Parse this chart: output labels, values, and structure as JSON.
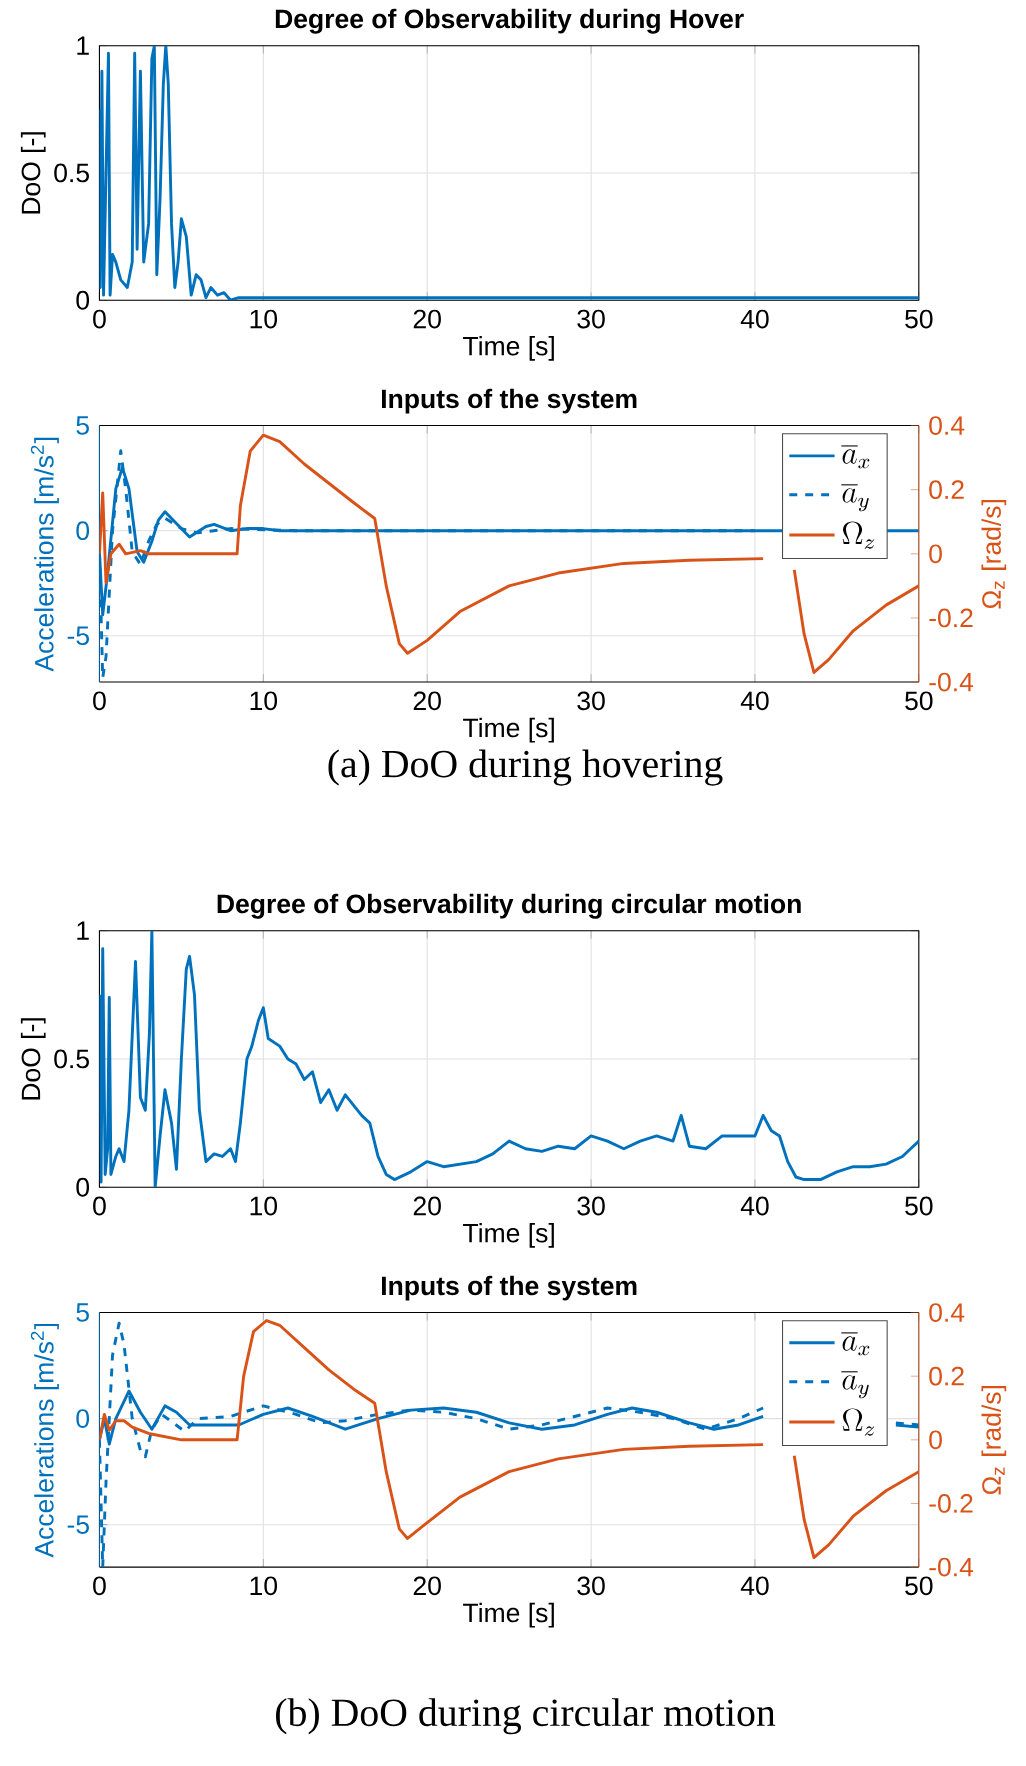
{
  "chart_data": [
    {
      "type": "line",
      "title": "Degree of Observability during Hover",
      "xlabel": "Time [s]",
      "ylabel": "DoO [-]",
      "xlim": [
        0,
        50
      ],
      "ylim": [
        0,
        1
      ],
      "xticks": [
        0,
        10,
        20,
        30,
        40,
        50
      ],
      "yticks": [
        0,
        0.5,
        1
      ],
      "grid": true,
      "series": [
        {
          "color": "#0072bd",
          "x": [
            0,
            0.05,
            0.15,
            0.25,
            0.4,
            0.55,
            0.65,
            0.8,
            1.0,
            1.3,
            1.7,
            2.0,
            2.15,
            2.3,
            2.5,
            2.7,
            3.0,
            3.2,
            3.35,
            3.5,
            3.7,
            3.9,
            4.05,
            4.2,
            4.4,
            4.6,
            4.8,
            5.0,
            5.3,
            5.6,
            5.9,
            6.2,
            6.5,
            6.8,
            7.2,
            7.6,
            8.0,
            8.5,
            9,
            10,
            15,
            20,
            25,
            30,
            35,
            40,
            45,
            50
          ],
          "values": [
            0.75,
            0.05,
            0.9,
            0.02,
            0.5,
            0.97,
            0.02,
            0.18,
            0.15,
            0.08,
            0.05,
            0.15,
            0.97,
            0.2,
            0.9,
            0.15,
            0.3,
            0.95,
            1.0,
            0.1,
            0.4,
            0.85,
            1.0,
            0.85,
            0.3,
            0.05,
            0.15,
            0.32,
            0.25,
            0.02,
            0.1,
            0.08,
            0.01,
            0.05,
            0.02,
            0.03,
            0.0,
            0.01,
            0.01,
            0.01,
            0.01,
            0.01,
            0.01,
            0.01,
            0.01,
            0.01,
            0.01,
            0.01
          ]
        }
      ]
    },
    {
      "type": "line",
      "title": "Inputs of the system",
      "xlabel": "Time [s]",
      "ylabel": "Accelerations [m/s$^{2}$]",
      "y2label": "Ω$_{z}$ [rad/s]",
      "xlim": [
        0,
        50
      ],
      "ylim": [
        -7.2,
        5
      ],
      "y2lim": [
        -0.4,
        0.4
      ],
      "xticks": [
        0,
        10,
        20,
        30,
        40,
        50
      ],
      "yticks": [
        -5,
        0,
        5
      ],
      "y2ticks": [
        -0.4,
        -0.2,
        0,
        0.2,
        0.4
      ],
      "grid": true,
      "legend": "top right",
      "annotations": [
        "(a) DoO during hovering"
      ],
      "series": [
        {
          "name": "\\overline{a}_x",
          "color": "#0072bd",
          "line_style": "solid",
          "x": [
            0,
            0.2,
            0.5,
            1.0,
            1.4,
            1.8,
            2.3,
            2.7,
            3.2,
            3.6,
            4.0,
            4.5,
            5.5,
            6.5,
            7.0,
            8,
            9,
            10,
            11,
            40,
            50
          ],
          "values": [
            -1,
            -4,
            -2,
            2,
            3,
            2,
            -1,
            -1.5,
            -0.5,
            0.5,
            0.9,
            0.5,
            -0.3,
            0.2,
            0.3,
            0.0,
            0.1,
            0.1,
            0.0,
            0.0,
            0.0
          ]
        },
        {
          "name": "\\overline{a}_y",
          "color": "#0072bd",
          "line_style": "dashed",
          "x": [
            0,
            0.2,
            0.4,
            0.8,
            1.3,
            1.6,
            2.0,
            2.5,
            3.0,
            3.5,
            4.0,
            5,
            6,
            8,
            12,
            40
          ],
          "values": [
            -1,
            -7,
            -6,
            0,
            3.8,
            2,
            -1,
            -1.6,
            -0.5,
            0.3,
            0.6,
            0.1,
            -0.1,
            0.1,
            0,
            0
          ]
        },
        {
          "name": "\\Omega_z",
          "color": "#d95319",
          "line_style": "solid",
          "axis": "y2",
          "x": [
            0,
            0.2,
            0.4,
            0.7,
            1.2,
            1.6,
            2.5,
            3.0,
            8.4,
            8.6,
            9.2,
            10,
            11,
            12.5,
            14,
            15.5,
            16.8,
            17.5,
            18.3,
            18.8,
            20,
            22,
            25,
            28,
            32,
            36,
            40.5,
            41.5,
            42.4,
            43,
            43.6,
            44.5,
            46,
            48,
            50
          ],
          "values": [
            0,
            0.19,
            -0.09,
            0.0,
            0.03,
            0.0,
            0.01,
            0.0,
            0.0,
            0.15,
            0.32,
            0.37,
            0.35,
            0.28,
            0.22,
            0.16,
            0.11,
            -0.1,
            -0.28,
            -0.31,
            -0.27,
            -0.18,
            -0.1,
            -0.06,
            -0.03,
            -0.02,
            -0.015,
            null,
            -0.05,
            -0.25,
            -0.37,
            -0.33,
            -0.24,
            -0.16,
            -0.1
          ]
        }
      ]
    },
    {
      "type": "line",
      "title": "Degree of Observability during circular motion",
      "xlabel": "Time [s]",
      "ylabel": "DoO [-]",
      "xlim": [
        0,
        50
      ],
      "ylim": [
        0,
        1
      ],
      "xticks": [
        0,
        10,
        20,
        30,
        40,
        50
      ],
      "yticks": [
        0,
        0.5,
        1
      ],
      "grid": true,
      "series": [
        {
          "color": "#0072bd",
          "x": [
            0,
            0.1,
            0.2,
            0.35,
            0.5,
            0.6,
            0.7,
            1.0,
            1.2,
            1.5,
            1.8,
            2.2,
            2.5,
            2.8,
            3.05,
            3.2,
            3.4,
            3.7,
            4.0,
            4.4,
            4.7,
            5.0,
            5.3,
            5.5,
            5.8,
            6.1,
            6.5,
            7,
            7.5,
            8,
            8.3,
            8.6,
            9.0,
            9.3,
            9.7,
            10,
            10.3,
            11,
            11.5,
            12,
            12.5,
            13,
            13.5,
            14,
            14.5,
            15,
            15.5,
            16,
            16.5,
            17,
            17.5,
            18,
            19,
            20,
            21,
            22,
            23,
            24,
            25,
            26,
            27,
            28,
            29,
            30,
            31,
            32,
            33,
            34,
            35,
            35.5,
            36,
            37,
            38,
            39,
            40,
            40.5,
            41,
            41.5,
            42,
            42.5,
            43,
            44,
            45,
            46,
            47,
            48,
            49,
            49.5,
            50
          ],
          "values": [
            0.75,
            0.02,
            0.93,
            0.05,
            0.15,
            0.74,
            0.05,
            0.12,
            0.15,
            0.1,
            0.3,
            0.88,
            0.35,
            0.3,
            0.6,
            1.0,
            0.0,
            0.2,
            0.38,
            0.25,
            0.07,
            0.5,
            0.85,
            0.9,
            0.75,
            0.3,
            0.1,
            0.13,
            0.12,
            0.15,
            0.1,
            0.25,
            0.5,
            0.55,
            0.65,
            0.7,
            0.58,
            0.55,
            0.5,
            0.48,
            0.42,
            0.45,
            0.33,
            0.38,
            0.3,
            0.36,
            0.32,
            0.28,
            0.25,
            0.12,
            0.05,
            0.03,
            0.06,
            0.1,
            0.08,
            0.09,
            0.1,
            0.13,
            0.18,
            0.15,
            0.14,
            0.16,
            0.15,
            0.2,
            0.18,
            0.15,
            0.18,
            0.2,
            0.18,
            0.28,
            0.16,
            0.15,
            0.2,
            0.2,
            0.2,
            0.28,
            0.22,
            0.2,
            0.1,
            0.04,
            0.03,
            0.03,
            0.06,
            0.08,
            0.08,
            0.09,
            0.12,
            0.15,
            0.18
          ]
        }
      ]
    },
    {
      "type": "line",
      "title": "Inputs of the system",
      "xlabel": "Time [s]",
      "ylabel": "Accelerations [m/s$^{2}$]",
      "y2label": "Ω$_{z}$ [rad/s]",
      "xlim": [
        0,
        50
      ],
      "ylim": [
        -7,
        5
      ],
      "y2lim": [
        -0.4,
        0.4
      ],
      "xticks": [
        0,
        10,
        20,
        30,
        40,
        50
      ],
      "yticks": [
        -5,
        0,
        5
      ],
      "y2ticks": [
        -0.4,
        -0.2,
        0,
        0.2,
        0.4
      ],
      "grid": true,
      "legend": "top right",
      "annotations": [
        "(b) DoO during circular motion"
      ],
      "series": [
        {
          "name": "\\overline{a}_x",
          "color": "#0072bd",
          "line_style": "solid",
          "x": [
            0,
            0.3,
            0.6,
            1.0,
            1.8,
            2.5,
            3.2,
            4,
            4.7,
            5.5,
            6,
            8.5,
            10,
            11.5,
            13,
            15,
            17,
            19,
            21,
            23,
            25,
            27,
            29,
            31,
            32.5,
            34,
            36,
            37.5,
            39,
            40.5,
            41,
            48.6,
            50
          ],
          "values": [
            -1,
            0,
            -1.2,
            0,
            1.3,
            0.3,
            -0.5,
            0.6,
            0.3,
            -0.3,
            -0.3,
            -0.3,
            0.2,
            0.5,
            0.1,
            -0.5,
            0.0,
            0.4,
            0.5,
            0.3,
            -0.2,
            -0.5,
            -0.3,
            0.2,
            0.5,
            0.3,
            -0.2,
            -0.5,
            -0.3,
            0.1,
            null,
            -0.3,
            -0.4
          ]
        },
        {
          "name": "\\overline{a}_y",
          "color": "#0072bd",
          "line_style": "dashed",
          "x": [
            0,
            0.2,
            0.4,
            0.8,
            1.2,
            1.5,
            2.0,
            2.5,
            2.8,
            3.2,
            3.8,
            4.5,
            5.2,
            6,
            8,
            10,
            12,
            13.5,
            15,
            17,
            19,
            21,
            23,
            25,
            27,
            29,
            31,
            33,
            35,
            37,
            39,
            40.5,
            41,
            48.6,
            50
          ],
          "values": [
            -1,
            -7,
            -3,
            3,
            4.5,
            3.5,
            0,
            -1.5,
            -1.8,
            -0.5,
            0.2,
            -0.2,
            -0.6,
            0.0,
            0.1,
            0.6,
            0.2,
            -0.2,
            -0.1,
            0.2,
            0.4,
            0.3,
            0.0,
            -0.5,
            -0.3,
            0.1,
            0.5,
            0.3,
            0.0,
            -0.5,
            0.0,
            0.5,
            null,
            -0.2,
            -0.3
          ]
        },
        {
          "name": "\\Omega_z",
          "color": "#d95319",
          "line_style": "solid",
          "axis": "y2",
          "x": [
            0,
            0.3,
            0.6,
            1.0,
            1.5,
            2,
            3,
            5,
            8.4,
            8.8,
            9.4,
            10.2,
            11,
            12.5,
            14,
            15.5,
            16.8,
            17.5,
            18.3,
            18.8,
            20,
            22,
            25,
            28,
            32,
            36,
            40.5,
            41.5,
            42.4,
            43,
            43.6,
            44.5,
            46,
            48,
            50
          ],
          "values": [
            0,
            0.08,
            0.03,
            0.06,
            0.06,
            0.04,
            0.02,
            0.0,
            0.0,
            0.2,
            0.34,
            0.375,
            0.36,
            0.29,
            0.22,
            0.16,
            0.115,
            -0.1,
            -0.28,
            -0.31,
            -0.26,
            -0.18,
            -0.1,
            -0.06,
            -0.03,
            -0.02,
            -0.015,
            null,
            -0.05,
            -0.25,
            -0.37,
            -0.33,
            -0.24,
            -0.16,
            -0.1
          ]
        }
      ]
    }
  ]
}
